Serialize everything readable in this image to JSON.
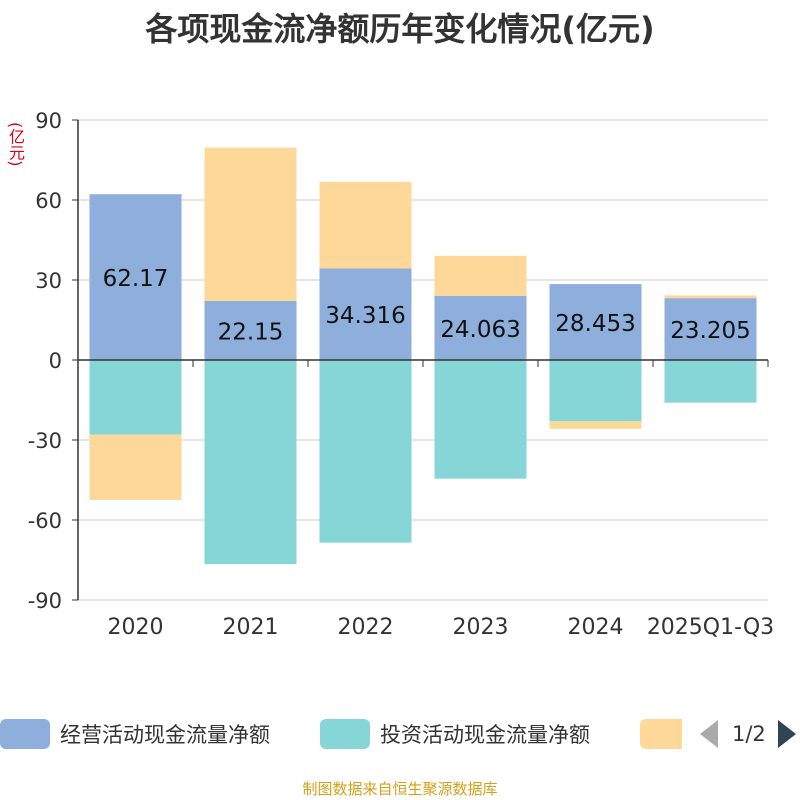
{
  "title": "各项现金流净额历年变化情况(亿元)",
  "unit_label": "(亿元)",
  "colors": {
    "operating": "#8eaedb",
    "investing": "#86d6d8",
    "financing": "#fed898",
    "axis": "#333333",
    "grid": "#cccccc",
    "unit": "#d9001b",
    "footer": "#d4a017"
  },
  "legend": {
    "items": [
      {
        "label": "经营活动现金流量净额",
        "color": "#8eaedb"
      },
      {
        "label": "投资活动现金流量净额",
        "color": "#86d6d8"
      },
      {
        "label": "",
        "color": "#fed898"
      }
    ],
    "page_text": "1/2"
  },
  "footer": "制图数据来自恒生聚源数据库",
  "chart_data": {
    "type": "bar",
    "stacked": true,
    "categories": [
      "2020",
      "2021",
      "2022",
      "2023",
      "2024",
      "2025Q1-Q3"
    ],
    "ylim": [
      -90,
      90
    ],
    "yticks": [
      90,
      60,
      30,
      0,
      -30,
      -60,
      -90
    ],
    "series": [
      {
        "name": "经营活动现金流量净额",
        "values": [
          62.17,
          22.15,
          34.316,
          24.063,
          28.453,
          23.205
        ],
        "labels": [
          "62.17",
          "22.15",
          "34.316",
          "24.063",
          "28.453",
          "23.205"
        ]
      },
      {
        "name": "投资活动现金流量净额",
        "values": [
          -28,
          -76.5,
          -68.5,
          -44.5,
          -23,
          -16
        ]
      },
      {
        "values": [
          -24.5,
          57.5,
          32.5,
          15,
          -2.8,
          1
        ]
      }
    ],
    "grid": true,
    "legend_position": "bottom"
  }
}
